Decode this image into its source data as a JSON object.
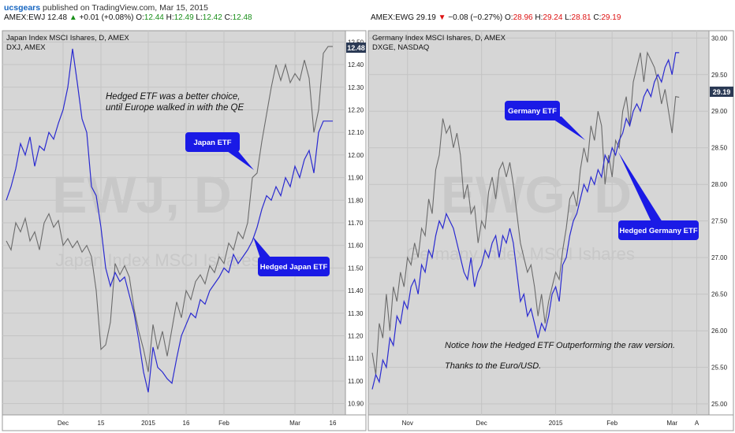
{
  "header": {
    "brand": "ucsgears",
    "published": "published on TradingView.com, Mar 15, 2015"
  },
  "panels": [
    {
      "ticker": "AMEX:EWJ",
      "last": "12.48",
      "change_arrow": "▲",
      "change": "+0.01 (+0.08%)",
      "o_label": "O:",
      "o": "12.44",
      "h_label": "H:",
      "h": "12.49",
      "l_label": "L:",
      "l": "12.42",
      "c_label": "C:",
      "c": "12.48",
      "title": "Japan Index MSCI Ishares, D, AMEX",
      "subtitle": "DXJ, AMEX",
      "watermark": "EWJ, D",
      "watermark2": "Japan Index MSCI Ishares",
      "price_badge": "12.48",
      "note_lines": [
        "Hedged ETF was a better choice,",
        "until Europe walked in with the QE"
      ],
      "callouts": [
        "Japan ETF",
        "Hedged Japan ETF"
      ],
      "note2_lines": []
    },
    {
      "ticker": "AMEX:EWG",
      "last": "29.19",
      "change_arrow": "▼",
      "change": "−0.08 (−0.27%)",
      "o_label": "O:",
      "o": "28.96",
      "h_label": "H:",
      "h": "29.24",
      "l_label": "L:",
      "l": "28.81",
      "c_label": "C:",
      "c": "29.19",
      "title": "Germany Index MSCI Ishares, D, AMEX",
      "subtitle": "DXGE, NASDAQ",
      "watermark": "EWG, D",
      "watermark2": "Germany Index MSCI Ishares",
      "price_badge": "29.19",
      "note_lines": [],
      "callouts": [
        "Germany ETF",
        "Hedged Germany ETF"
      ],
      "note2_lines": [
        "Notice how the Hedged ETF Outperforming the raw version.",
        "Thanks to the Euro/USD."
      ]
    }
  ],
  "colors": {
    "plot_bg": "#d6d6d6",
    "raw_line": "#6b6b6b",
    "hedged_line": "#2a2ad0",
    "callout_bg": "#1a1ae6",
    "badge_bg": "#2b3a55"
  },
  "chart_data": [
    {
      "type": "line",
      "ylim": [
        10.85,
        12.55
      ],
      "yticks": [
        10.9,
        11.0,
        11.1,
        11.2,
        11.3,
        11.4,
        11.5,
        11.6,
        11.7,
        11.8,
        11.9,
        12.0,
        12.1,
        12.2,
        12.3,
        12.4,
        12.5
      ],
      "ytick_labels": [
        "10.90",
        "11.00",
        "11.10",
        "11.20",
        "11.30",
        "11.40",
        "11.50",
        "11.60",
        "11.70",
        "11.80",
        "11.90",
        "12.00",
        "12.10",
        "12.20",
        "12.30",
        "12.40",
        "12.50"
      ],
      "xrange": [
        0,
        70
      ],
      "xticks": [
        {
          "x": 12,
          "label": "Dec"
        },
        {
          "x": 20,
          "label": "15"
        },
        {
          "x": 30,
          "label": "2015"
        },
        {
          "x": 38,
          "label": "16"
        },
        {
          "x": 46,
          "label": "Feb"
        },
        {
          "x": 61,
          "label": "Mar"
        },
        {
          "x": 69,
          "label": "16"
        }
      ],
      "grid": true,
      "series": [
        {
          "name": "Japan ETF",
          "x": [
            0,
            1,
            2,
            3,
            4,
            5,
            6,
            7,
            8,
            9,
            10,
            11,
            12,
            13,
            14,
            15,
            16,
            17,
            18,
            19,
            20,
            21,
            22,
            23,
            24,
            25,
            26,
            27,
            28,
            29,
            30,
            31,
            32,
            33,
            34,
            35,
            36,
            37,
            38,
            39,
            40,
            41,
            42,
            43,
            44,
            45,
            46,
            47,
            48,
            49,
            50,
            51,
            52,
            53,
            54,
            55,
            56,
            57,
            58,
            59,
            60,
            61,
            62,
            63,
            64,
            65,
            66,
            67,
            68,
            69
          ],
          "values": [
            11.62,
            11.58,
            11.7,
            11.66,
            11.72,
            11.62,
            11.66,
            11.58,
            11.7,
            11.74,
            11.68,
            11.71,
            11.6,
            11.63,
            11.59,
            11.62,
            11.57,
            11.6,
            11.55,
            11.4,
            11.14,
            11.16,
            11.26,
            11.52,
            11.47,
            11.51,
            11.46,
            11.32,
            11.22,
            11.14,
            11.04,
            11.25,
            11.14,
            11.22,
            11.11,
            11.23,
            11.35,
            11.28,
            11.4,
            11.36,
            11.44,
            11.47,
            11.43,
            11.51,
            11.48,
            11.55,
            11.52,
            11.61,
            11.58,
            11.66,
            11.63,
            11.7,
            11.9,
            11.92,
            12.06,
            12.18,
            12.3,
            12.4,
            12.33,
            12.4,
            12.32,
            12.36,
            12.33,
            12.42,
            12.34,
            12.1,
            12.2,
            12.45,
            12.48,
            12.48
          ]
        },
        {
          "name": "Hedged Japan ETF",
          "x": [
            0,
            1,
            2,
            3,
            4,
            5,
            6,
            7,
            8,
            9,
            10,
            11,
            12,
            13,
            14,
            15,
            16,
            17,
            18,
            19,
            20,
            21,
            22,
            23,
            24,
            25,
            26,
            27,
            28,
            29,
            30,
            31,
            32,
            33,
            34,
            35,
            36,
            37,
            38,
            39,
            40,
            41,
            42,
            43,
            44,
            45,
            46,
            47,
            48,
            49,
            50,
            51,
            52,
            53,
            54,
            55,
            56,
            57,
            58,
            59,
            60,
            61,
            62,
            63,
            64,
            65,
            66,
            67,
            68,
            69
          ],
          "values": [
            11.8,
            11.86,
            11.94,
            12.05,
            12.0,
            12.08,
            11.95,
            12.04,
            12.02,
            12.1,
            12.07,
            12.14,
            12.2,
            12.3,
            12.47,
            12.32,
            12.16,
            12.1,
            11.86,
            11.82,
            11.68,
            11.5,
            11.42,
            11.48,
            11.44,
            11.46,
            11.38,
            11.3,
            11.18,
            11.04,
            10.95,
            11.15,
            11.06,
            11.04,
            11.01,
            10.99,
            11.1,
            11.2,
            11.25,
            11.3,
            11.28,
            11.36,
            11.34,
            11.4,
            11.43,
            11.46,
            11.5,
            11.48,
            11.56,
            11.52,
            11.55,
            11.58,
            11.62,
            11.68,
            11.76,
            11.82,
            11.8,
            11.86,
            11.82,
            11.9,
            11.86,
            11.95,
            11.9,
            11.98,
            12.02,
            11.92,
            12.1,
            12.15,
            12.15,
            12.15
          ]
        }
      ]
    },
    {
      "type": "line",
      "ylim": [
        24.85,
        30.1
      ],
      "yticks": [
        25.0,
        25.5,
        26.0,
        26.5,
        27.0,
        27.5,
        28.0,
        28.5,
        29.0,
        29.5,
        30.0
      ],
      "ytick_labels": [
        "25.00",
        "25.50",
        "26.00",
        "26.50",
        "27.00",
        "27.50",
        "28.00",
        "28.50",
        "29.00",
        "29.50",
        "30.00"
      ],
      "xrange": [
        0,
        93
      ],
      "xticks": [
        {
          "x": 10,
          "label": "Nov"
        },
        {
          "x": 31,
          "label": "Dec"
        },
        {
          "x": 52,
          "label": "2015"
        },
        {
          "x": 68,
          "label": "Feb"
        },
        {
          "x": 85,
          "label": "Mar"
        },
        {
          "x": 92,
          "label": "A"
        }
      ],
      "grid": true,
      "series": [
        {
          "name": "Germany ETF",
          "x": [
            0,
            1,
            2,
            3,
            4,
            5,
            6,
            7,
            8,
            9,
            10,
            11,
            12,
            13,
            14,
            15,
            16,
            17,
            18,
            19,
            20,
            21,
            22,
            23,
            24,
            25,
            26,
            27,
            28,
            29,
            30,
            31,
            32,
            33,
            34,
            35,
            36,
            37,
            38,
            39,
            40,
            41,
            42,
            43,
            44,
            45,
            46,
            47,
            48,
            49,
            50,
            51,
            52,
            53,
            54,
            55,
            56,
            57,
            58,
            59,
            60,
            61,
            62,
            63,
            64,
            65,
            66,
            67,
            68,
            69,
            70,
            71,
            72,
            73,
            74,
            75,
            76,
            77,
            78,
            79,
            80,
            81,
            82,
            83,
            84,
            85,
            86,
            87
          ],
          "values": [
            25.7,
            25.4,
            26.1,
            25.9,
            26.5,
            26.0,
            26.6,
            26.4,
            26.8,
            26.6,
            27.0,
            26.9,
            27.2,
            27.0,
            27.4,
            27.3,
            27.8,
            27.6,
            28.2,
            28.4,
            28.9,
            28.7,
            28.8,
            28.5,
            28.7,
            28.4,
            27.8,
            28.0,
            27.6,
            27.7,
            27.2,
            27.5,
            27.4,
            27.9,
            28.1,
            27.8,
            28.2,
            28.3,
            28.1,
            28.3,
            28.0,
            27.6,
            27.2,
            27.0,
            26.8,
            26.9,
            26.6,
            26.2,
            26.5,
            26.1,
            26.4,
            26.6,
            26.8,
            26.7,
            27.1,
            27.4,
            27.8,
            27.9,
            27.7,
            28.2,
            28.5,
            28.3,
            28.8,
            28.6,
            29.0,
            28.8,
            28.0,
            28.4,
            28.1,
            28.6,
            28.5,
            29.0,
            29.2,
            28.8,
            29.4,
            29.6,
            29.8,
            29.4,
            29.8,
            29.7,
            29.6,
            29.4,
            29.1,
            29.3,
            29.0,
            28.7,
            29.2,
            29.19
          ]
        },
        {
          "name": "Hedged Germany ETF",
          "x": [
            0,
            1,
            2,
            3,
            4,
            5,
            6,
            7,
            8,
            9,
            10,
            11,
            12,
            13,
            14,
            15,
            16,
            17,
            18,
            19,
            20,
            21,
            22,
            23,
            24,
            25,
            26,
            27,
            28,
            29,
            30,
            31,
            32,
            33,
            34,
            35,
            36,
            37,
            38,
            39,
            40,
            41,
            42,
            43,
            44,
            45,
            46,
            47,
            48,
            49,
            50,
            51,
            52,
            53,
            54,
            55,
            56,
            57,
            58,
            59,
            60,
            61,
            62,
            63,
            64,
            65,
            66,
            67,
            68,
            69,
            70,
            71,
            72,
            73,
            74,
            75,
            76,
            77,
            78,
            79,
            80,
            81,
            82,
            83,
            84,
            85,
            86,
            87
          ],
          "values": [
            25.2,
            25.4,
            25.3,
            25.6,
            25.5,
            25.9,
            25.8,
            26.2,
            26.1,
            26.4,
            26.3,
            26.6,
            26.7,
            26.5,
            26.9,
            26.8,
            27.1,
            27.0,
            27.3,
            27.5,
            27.4,
            27.6,
            27.5,
            27.4,
            27.2,
            27.0,
            26.8,
            26.7,
            27.0,
            26.6,
            26.8,
            26.9,
            27.1,
            27.0,
            27.2,
            27.3,
            27.0,
            27.3,
            27.2,
            27.4,
            27.2,
            26.8,
            26.4,
            26.5,
            26.2,
            26.3,
            26.1,
            25.9,
            26.1,
            26.0,
            26.2,
            26.5,
            26.6,
            26.4,
            26.9,
            27.0,
            27.3,
            27.5,
            27.6,
            27.8,
            28.0,
            27.9,
            28.1,
            28.0,
            28.2,
            28.1,
            28.4,
            28.3,
            28.5,
            28.4,
            28.6,
            28.7,
            28.9,
            28.8,
            29.0,
            29.1,
            29.0,
            29.2,
            29.3,
            29.2,
            29.4,
            29.5,
            29.4,
            29.6,
            29.7,
            29.5,
            29.8,
            29.8
          ]
        }
      ]
    }
  ]
}
